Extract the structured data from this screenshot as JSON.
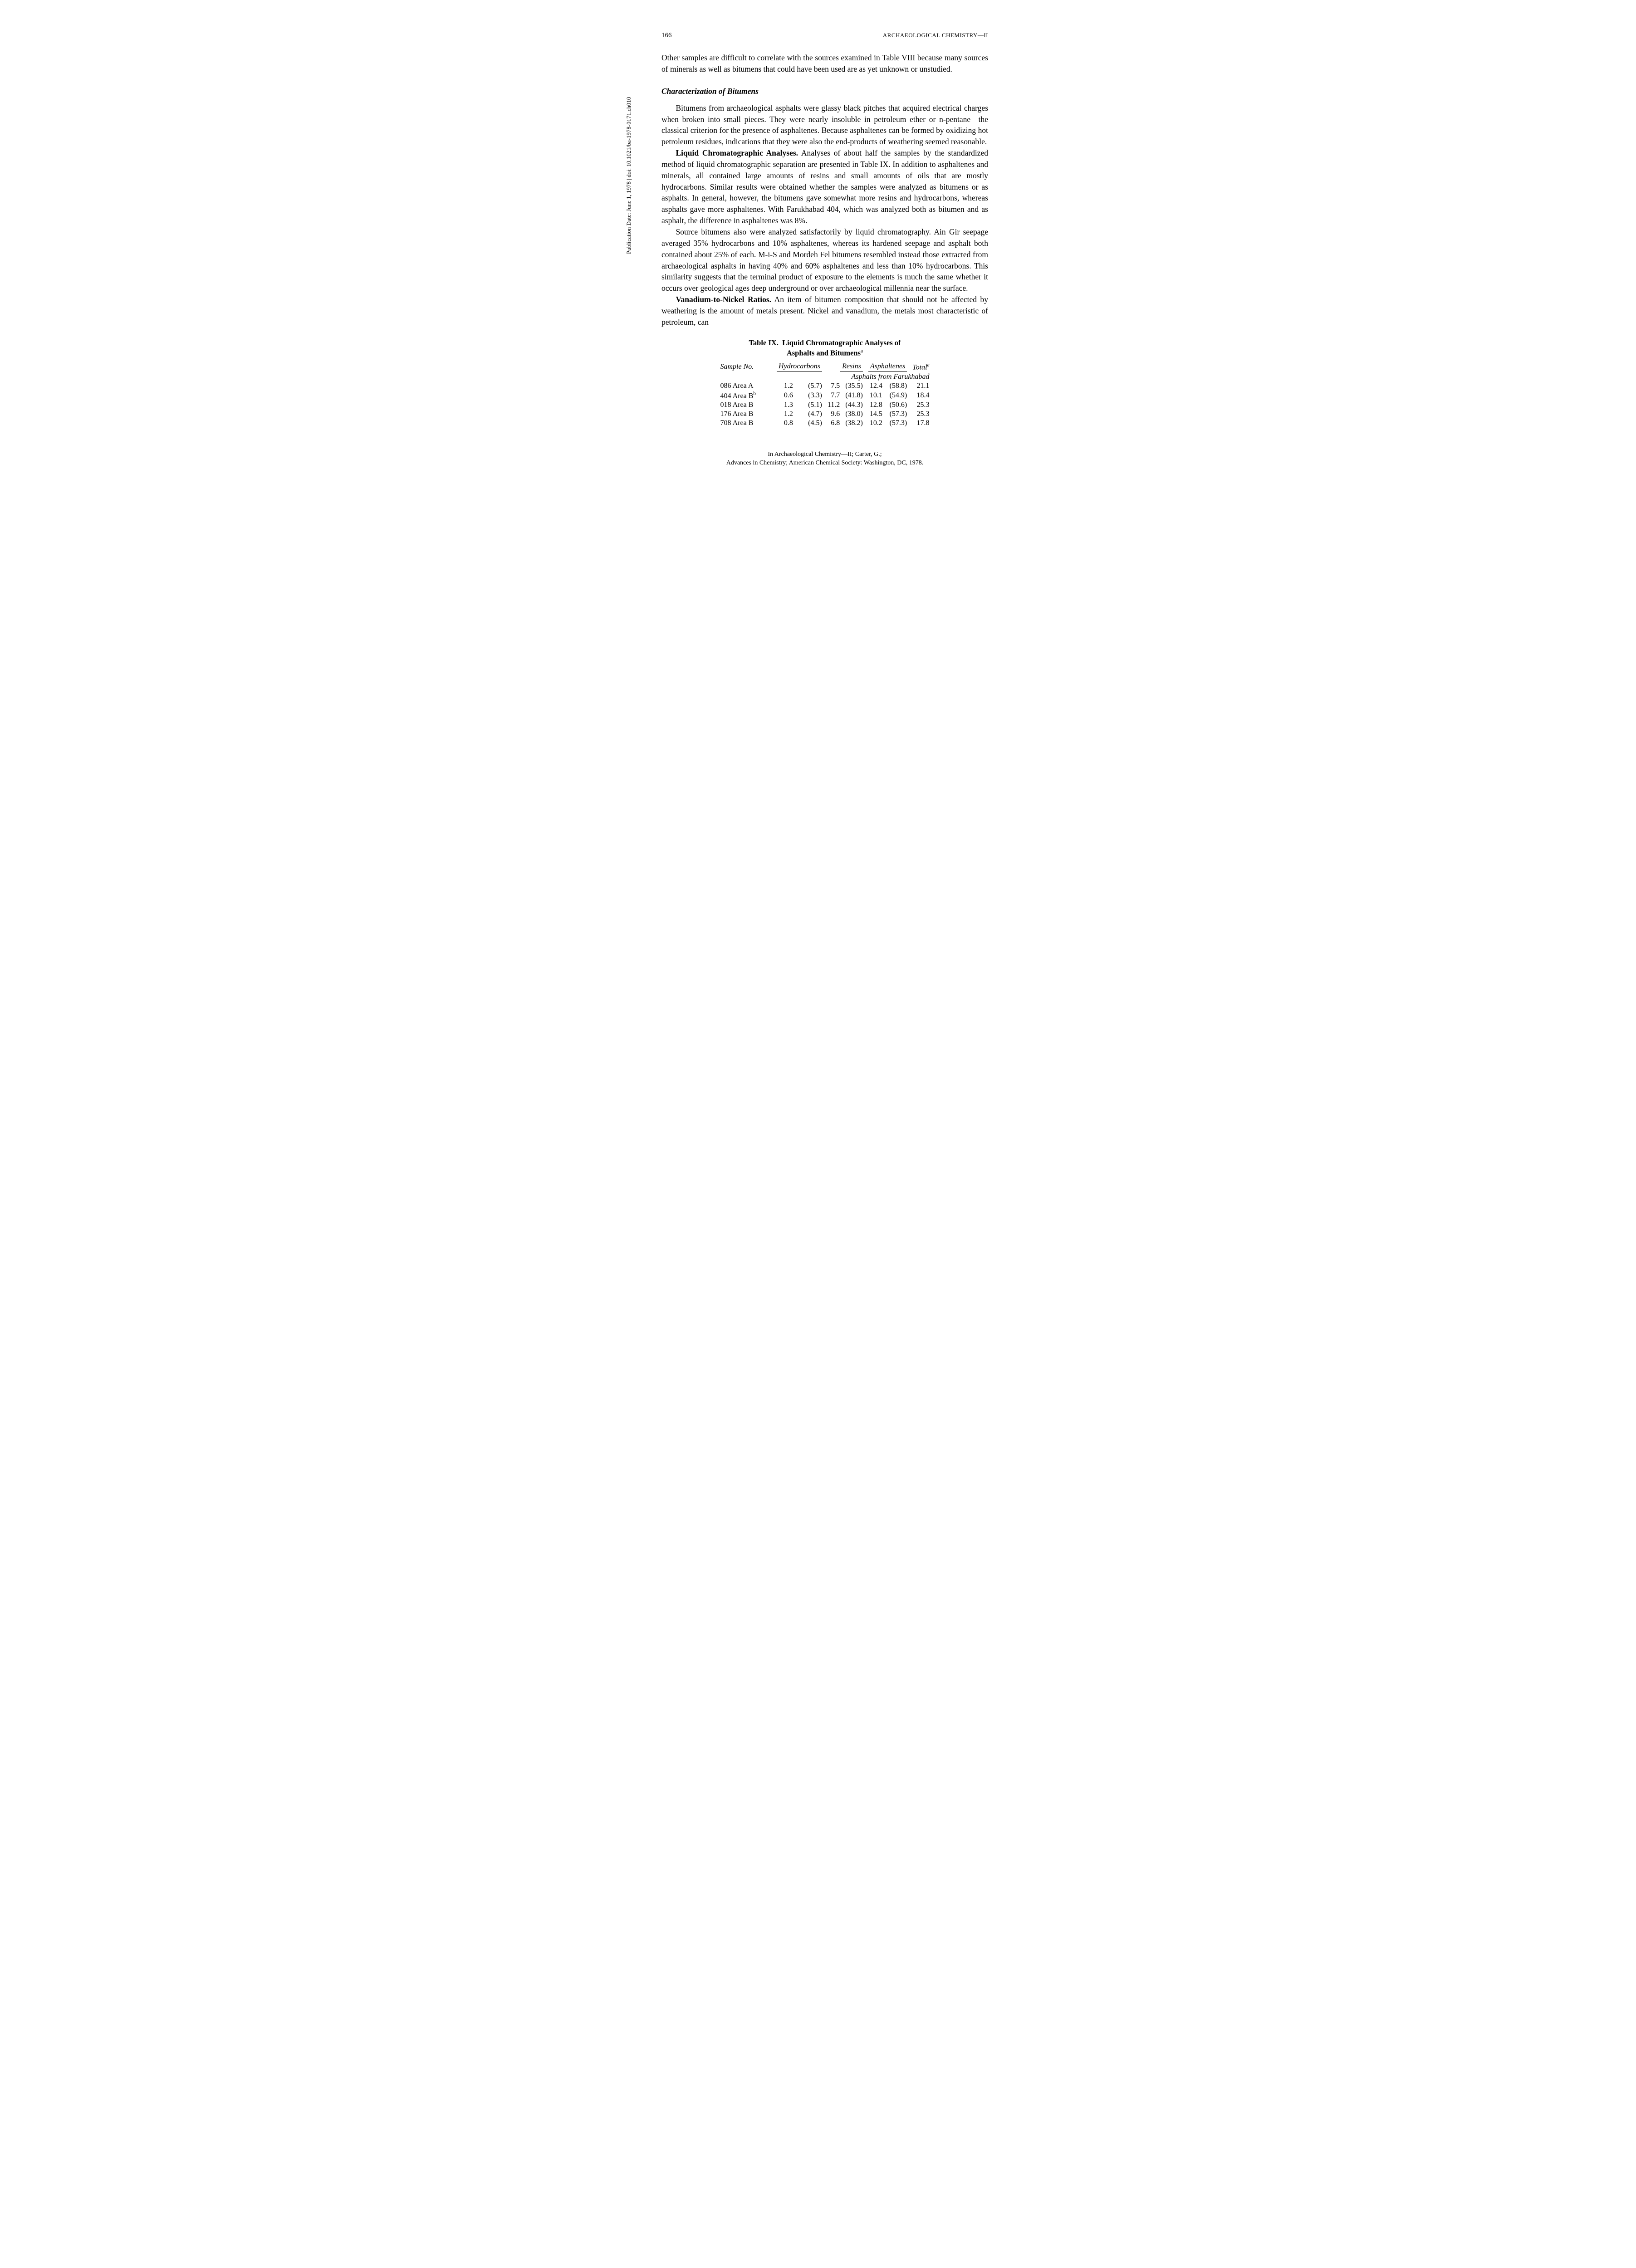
{
  "page_number": "166",
  "running_head": "ARCHAEOLOGICAL CHEMISTRY—II",
  "sidebar": "Publication Date: June 1, 1978 | doi: 10.1021/ba-1978-0171.ch010",
  "paragraphs": {
    "p1": "Other samples are difficult to correlate with the sources examined in Table VIII because many sources of minerals as well as bitumens that could have been used are as yet unknown or unstudied.",
    "section_heading": "Characterization of Bitumens",
    "p2": "Bitumens from archaeological asphalts were glassy black pitches that acquired electrical charges when broken into small pieces. They were nearly insoluble in petroleum ether or n-pentane—the classical criterion for the presence of asphaltenes. Because asphaltenes can be formed by oxidizing hot petroleum residues, indications that they were also the end-products of weathering seemed reasonable.",
    "p3_runin": "Liquid Chromatographic Analyses.",
    "p3_body": " Analyses of about half the samples by the standardized method of liquid chromatographic separation are presented in Table IX. In addition to asphaltenes and minerals, all contained large amounts of resins and small amounts of oils that are mostly hydrocarbons. Similar results were obtained whether the samples were analyzed as bitumens or as asphalts. In general, however, the bitumens gave somewhat more resins and hydrocarbons, whereas asphalts gave more asphaltenes. With Farukhabad 404, which was analyzed both as bitumen and as asphalt, the difference in asphaltenes was 8%.",
    "p4": "Source bitumens also were analyzed satisfactorily by liquid chromatography. Ain Gir seepage averaged 35% hydrocarbons and 10% asphaltenes, whereas its hardened seepage and asphalt both contained about 25% of each. M-i-S and Mordeh Fel bitumens resembled instead those extracted from archaeological asphalts in having 40% and 60% asphaltenes and less than 10% hydrocarbons. This similarity suggests that the terminal product of exposure to the elements is much the same whether it occurs over geological ages deep underground or over archaeological millennia near the surface.",
    "p5_runin": "Vanadium-to-Nickel Ratios.",
    "p5_body": " An item of bitumen composition that should not be affected by weathering is the amount of metals present. Nickel and vanadium, the metals most characteristic of petroleum, can"
  },
  "table": {
    "number": "Table IX.",
    "title_line1": "Liquid Chromatographic Analyses of",
    "title_line2": "Asphalts and Bitumens",
    "title_sup": "a",
    "columns": {
      "sample": "Sample No.",
      "hydrocarbons": "Hydrocarbons",
      "resins": "Resins",
      "asphaltenes": "Asphaltenes",
      "total": "Total",
      "total_sup": "e"
    },
    "subheading": "Asphalts from Farukhabad",
    "rows": [
      {
        "sample": "086 Area A",
        "sample_sup": "",
        "hc": "1.2",
        "hc_p": "(5.7)",
        "res": "7.5",
        "res_p": "(35.5)",
        "asp": "12.4",
        "asp_p": "(58.8)",
        "tot": "21.1"
      },
      {
        "sample": "404 Area B",
        "sample_sup": "b",
        "hc": "0.6",
        "hc_p": "(3.3)",
        "res": "7.7",
        "res_p": "(41.8)",
        "asp": "10.1",
        "asp_p": "(54.9)",
        "tot": "18.4"
      },
      {
        "sample": "018 Area B",
        "sample_sup": "",
        "hc": "1.3",
        "hc_p": "(5.1)",
        "res": "11.2",
        "res_p": "(44.3)",
        "asp": "12.8",
        "asp_p": "(50.6)",
        "tot": "25.3"
      },
      {
        "sample": "176 Area B",
        "sample_sup": "",
        "hc": "1.2",
        "hc_p": "(4.7)",
        "res": "9.6",
        "res_p": "(38.0)",
        "asp": "14.5",
        "asp_p": "(57.3)",
        "tot": "25.3"
      },
      {
        "sample": "708 Area B",
        "sample_sup": "",
        "hc": "0.8",
        "hc_p": "(4.5)",
        "res": "6.8",
        "res_p": "(38.2)",
        "asp": "10.2",
        "asp_p": "(57.3)",
        "tot": "17.8"
      }
    ]
  },
  "footer": {
    "line1": "In Archaeological Chemistry—II; Carter, G.;",
    "line2": "Advances in Chemistry; American Chemical Society: Washington, DC, 1978."
  }
}
